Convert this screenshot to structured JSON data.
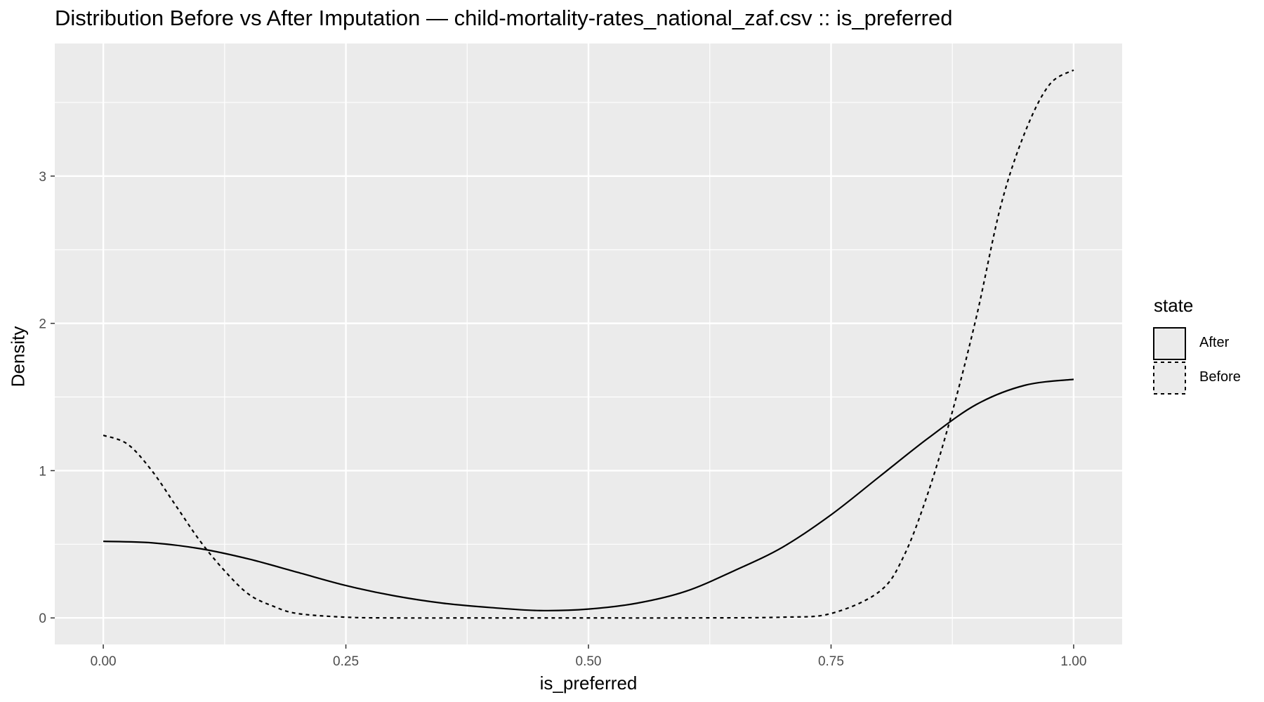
{
  "chart_data": {
    "type": "line",
    "title": "Distribution Before vs After Imputation — child-mortality-rates_national_zaf.csv :: is_preferred",
    "xlabel": "is_preferred",
    "ylabel": "Density",
    "xlim": [
      -0.05,
      1.05
    ],
    "ylim": [
      -0.18,
      3.9
    ],
    "x_ticks": [
      0.0,
      0.25,
      0.5,
      0.75,
      1.0
    ],
    "x_tick_labels": [
      "0.00",
      "0.25",
      "0.50",
      "0.75",
      "1.00"
    ],
    "y_ticks": [
      0,
      1,
      2,
      3
    ],
    "y_tick_labels": [
      "0",
      "1",
      "2",
      "3"
    ],
    "grid": true,
    "legend": {
      "title": "state",
      "placement": "right"
    },
    "series": [
      {
        "name": "After",
        "linestyle": "solid",
        "x": [
          0.0,
          0.05,
          0.1,
          0.15,
          0.2,
          0.25,
          0.3,
          0.35,
          0.4,
          0.45,
          0.5,
          0.55,
          0.6,
          0.65,
          0.7,
          0.75,
          0.8,
          0.85,
          0.9,
          0.95,
          1.0
        ],
        "y": [
          0.52,
          0.51,
          0.47,
          0.4,
          0.31,
          0.22,
          0.15,
          0.1,
          0.07,
          0.05,
          0.06,
          0.1,
          0.18,
          0.32,
          0.48,
          0.7,
          0.96,
          1.22,
          1.45,
          1.58,
          1.62
        ]
      },
      {
        "name": "Before",
        "linestyle": "dashed",
        "x": [
          0.0,
          0.025,
          0.05,
          0.075,
          0.1,
          0.125,
          0.15,
          0.175,
          0.2,
          0.25,
          0.3,
          0.4,
          0.5,
          0.6,
          0.7,
          0.75,
          0.8,
          0.825,
          0.85,
          0.875,
          0.9,
          0.925,
          0.95,
          0.975,
          1.0
        ],
        "y": [
          1.24,
          1.18,
          1.0,
          0.76,
          0.52,
          0.32,
          0.16,
          0.08,
          0.03,
          0.005,
          0.0,
          0.0,
          0.0,
          0.0,
          0.005,
          0.03,
          0.18,
          0.42,
          0.85,
          1.4,
          2.05,
          2.8,
          3.3,
          3.62,
          3.72
        ]
      }
    ]
  }
}
